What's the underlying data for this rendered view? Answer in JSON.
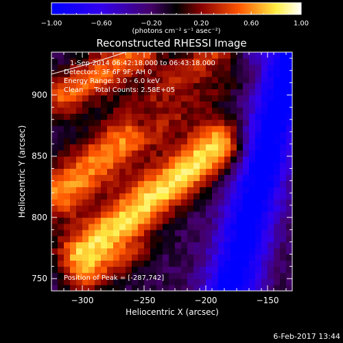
{
  "chart_data": {
    "type": "heatmap",
    "title": "Reconstructed RHESSI Image",
    "xlabel": "Heliocentric X (arcsec)",
    "ylabel": "Heliocentric Y (arcsec)",
    "xlim": [
      -325,
      -130
    ],
    "ylim": [
      740,
      935
    ],
    "x_ticks": [
      -300,
      -250,
      -200,
      -150
    ],
    "x_tick_labels": [
      "−300",
      "−250",
      "−200",
      "−150"
    ],
    "y_ticks": [
      750,
      800,
      850,
      900
    ],
    "y_tick_labels": [
      "750",
      "800",
      "850",
      "900"
    ],
    "colorbar": {
      "range": [
        -1.0,
        1.0
      ],
      "ticks": [
        -1.0,
        -0.6,
        -0.2,
        0.2,
        0.6,
        1.0
      ],
      "tick_labels": [
        "−1.00",
        "−0.60",
        "−0.20",
        "0.20",
        "0.60",
        "1.00"
      ],
      "units_label": "(photons cm⁻² s⁻¹ asec⁻²)"
    },
    "annotations": {
      "time": "1-Sep-2014 06:42:18.000 to 06:43:18.000",
      "detectors": "Detectors: 3F 6F 9F; AH 0",
      "energy": "Energy Range: 3.0 - 6.0 keV",
      "counts": "Clean     Total Counts: 2.58E+05",
      "position": "Position of Peak = [-287,742]"
    },
    "limb": [
      [
        -325,
        917
      ],
      [
        -300,
        924
      ],
      [
        -280,
        930
      ],
      [
        -265,
        935
      ]
    ],
    "ridges": [
      {
        "x1": -318,
        "y1": 820,
        "x2": -188,
        "y2": 930,
        "width": 30,
        "peak": 0.75
      },
      {
        "x1": -300,
        "y1": 770,
        "x2": -190,
        "y2": 860,
        "width": 28,
        "peak": 0.95
      },
      {
        "x1": -315,
        "y1": 900,
        "x2": -255,
        "y2": 935,
        "width": 25,
        "peak": 0.65
      },
      {
        "x1": -300,
        "y1": 745,
        "x2": -255,
        "y2": 770,
        "width": 18,
        "peak": 0.3
      }
    ],
    "wells": [
      {
        "x1": -180,
        "y1": 740,
        "x2": -130,
        "y2": 935,
        "width": 30,
        "depth": -0.95
      },
      {
        "x1": -250,
        "y1": 880,
        "x2": -170,
        "y2": 935,
        "width": 18,
        "depth": -0.4
      }
    ]
  },
  "footer": {
    "timestamp": "6-Feb-2017 13:44"
  }
}
